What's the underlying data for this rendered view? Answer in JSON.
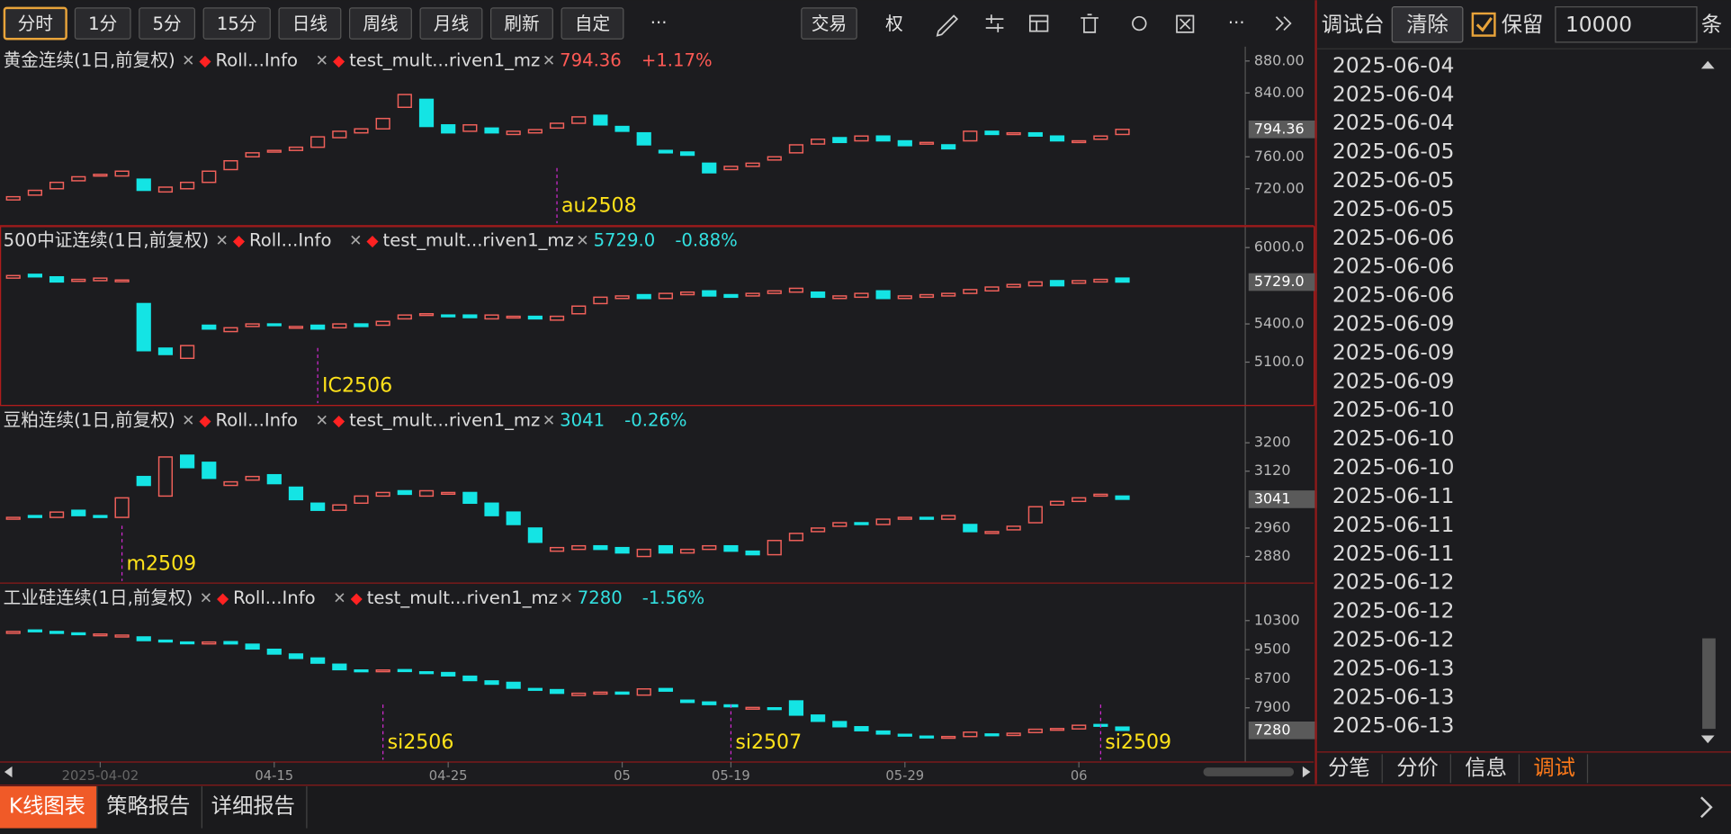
{
  "toolbar": {
    "periods": [
      "分时",
      "1分",
      "5分",
      "15分",
      "日线",
      "周线",
      "月线",
      "刷新",
      "自定"
    ],
    "active": 0,
    "more": "···",
    "actions": [
      "交易",
      "权"
    ]
  },
  "panels": [
    {
      "title": "黄金连续(1日,前复权)",
      "indicators": [
        "Roll...Info",
        "test_mult...riven1_mz"
      ],
      "last": {
        "value": 794.36,
        "label": "794.36"
      },
      "change": "+1.17%",
      "quote_color": "#ff5a55",
      "ylim": [
        674,
        898
      ],
      "yticks": [
        {
          "value": 880,
          "label": "880.00"
        },
        {
          "value": 840,
          "label": "840.00"
        },
        {
          "value": 760,
          "label": "760.00"
        },
        {
          "value": 720,
          "label": "720.00"
        }
      ],
      "open": [
        706,
        712,
        720,
        730,
        736,
        736,
        732,
        716,
        720,
        728,
        744,
        760,
        766,
        768,
        772,
        784,
        790,
        795,
        822,
        832,
        800,
        792,
        796,
        788,
        790,
        796,
        802,
        812,
        798,
        790,
        768,
        766,
        752,
        744,
        748,
        756,
        765,
        776,
        784,
        780,
        786,
        780,
        776,
        775,
        780,
        792,
        788,
        790,
        786,
        778,
        782,
        788
      ],
      "close": [
        710,
        718,
        728,
        735,
        738,
        742,
        718,
        722,
        728,
        742,
        755,
        765,
        768,
        772,
        785,
        792,
        795,
        808,
        838,
        798,
        790,
        800,
        790,
        792,
        794,
        802,
        810,
        800,
        792,
        775,
        765,
        762,
        740,
        748,
        752,
        760,
        775,
        782,
        778,
        786,
        780,
        774,
        778,
        770,
        792,
        788,
        790,
        786,
        780,
        780,
        786,
        794.36
      ],
      "markers": [
        {
          "label": "au2508",
          "at": 25
        }
      ]
    },
    {
      "title": "500中证连续(1日,前复权)",
      "indicators": [
        "Roll...Info",
        "test_mult...riven1_mz"
      ],
      "last": {
        "value": 5729,
        "label": "5729.0"
      },
      "change": "-0.88%",
      "quote_color": "#33e0e0",
      "ylim": [
        4760,
        6165
      ],
      "yticks": [
        {
          "value": 6000,
          "label": "6000.0"
        },
        {
          "value": 5400,
          "label": "5400.0"
        },
        {
          "value": 5100,
          "label": "5100.0"
        }
      ],
      "open": [
        5760,
        5790,
        5770,
        5735,
        5740,
        5745,
        5560,
        5210,
        5130,
        5390,
        5340,
        5380,
        5400,
        5370,
        5390,
        5370,
        5400,
        5390,
        5440,
        5470,
        5470,
        5470,
        5440,
        5450,
        5460,
        5430,
        5480,
        5560,
        5600,
        5630,
        5600,
        5630,
        5660,
        5630,
        5620,
        5640,
        5650,
        5650,
        5600,
        5610,
        5660,
        5600,
        5610,
        5620,
        5640,
        5660,
        5690,
        5700,
        5740,
        5720,
        5730,
        5760
      ],
      "close": [
        5780,
        5770,
        5730,
        5750,
        5760,
        5745,
        5190,
        5160,
        5230,
        5360,
        5370,
        5400,
        5390,
        5380,
        5360,
        5400,
        5380,
        5420,
        5470,
        5480,
        5460,
        5450,
        5470,
        5460,
        5440,
        5460,
        5540,
        5610,
        5620,
        5600,
        5640,
        5650,
        5620,
        5610,
        5640,
        5660,
        5680,
        5610,
        5620,
        5640,
        5600,
        5620,
        5630,
        5640,
        5670,
        5690,
        5710,
        5730,
        5700,
        5740,
        5750,
        5729
      ],
      "markers": [
        {
          "label": "IC2506",
          "at": 14
        }
      ]
    },
    {
      "title": "豆粕连续(1日,前复权)",
      "indicators": [
        "Roll...Info",
        "test_mult...riven1_mz"
      ],
      "last": {
        "value": 3041,
        "label": "3041"
      },
      "change": "-0.26%",
      "quote_color": "#33e0e0",
      "ylim": [
        2805,
        3302
      ],
      "yticks": [
        3200,
        3120,
        2960,
        2880
      ],
      "open": [
        2985,
        2995,
        2990,
        3010,
        2995,
        2990,
        3105,
        3050,
        3165,
        3145,
        3080,
        3095,
        3110,
        3075,
        3030,
        3010,
        3030,
        3050,
        3065,
        3050,
        3060,
        3060,
        3030,
        3005,
        2960,
        2895,
        2900,
        2910,
        2905,
        2880,
        2910,
        2890,
        2900,
        2910,
        2895,
        2885,
        2925,
        2950,
        2965,
        2975,
        2970,
        2985,
        2990,
        2985,
        2970,
        2945,
        2955,
        2975,
        3025,
        3035,
        3050,
        3050
      ],
      "close": [
        2990,
        2990,
        3005,
        2995,
        2990,
        3045,
        3080,
        3160,
        3130,
        3100,
        3090,
        3105,
        3085,
        3040,
        3010,
        3025,
        3050,
        3060,
        3055,
        3065,
        3060,
        3030,
        2995,
        2970,
        2920,
        2905,
        2910,
        2900,
        2890,
        2900,
        2890,
        2900,
        2910,
        2895,
        2885,
        2925,
        2945,
        2960,
        2975,
        2970,
        2985,
        2990,
        2985,
        2995,
        2950,
        2950,
        2965,
        3020,
        3035,
        3045,
        3055,
        3041
      ],
      "markers": [
        {
          "label": "m2509",
          "at": 5
        }
      ]
    },
    {
      "title": "工业硅连续(1日,前复权)",
      "indicators": [
        "Roll...Info",
        "test_mult...riven1_mz"
      ],
      "last": {
        "value": 7280,
        "label": "7280"
      },
      "change": "-1.56%",
      "quote_color": "#33e0e0",
      "ylim": [
        6410,
        11300
      ],
      "yticks": [
        10300,
        9500,
        8700,
        7900
      ],
      "open": [
        9950,
        10040,
        10000,
        9960,
        9920,
        9850,
        9850,
        9760,
        9710,
        9660,
        9720,
        9650,
        9510,
        9380,
        9270,
        9100,
        8940,
        8900,
        8950,
        8890,
        8870,
        8770,
        8640,
        8600,
        8430,
        8400,
        8240,
        8280,
        8330,
        8250,
        8430,
        8110,
        8060,
        7980,
        7900,
        7900,
        8090,
        7700,
        7520,
        7380,
        7260,
        7170,
        7120,
        7080,
        7110,
        7180,
        7140,
        7220,
        7300,
        7320,
        7440,
        7370
      ],
      "close": [
        10000,
        10020,
        9950,
        9940,
        9930,
        9900,
        9750,
        9720,
        9670,
        9710,
        9660,
        9520,
        9380,
        9260,
        9130,
        8950,
        8920,
        8940,
        8900,
        8880,
        8780,
        8650,
        8550,
        8440,
        8400,
        8300,
        8300,
        8330,
        8280,
        8420,
        8360,
        8050,
        7990,
        7930,
        7910,
        7880,
        7700,
        7530,
        7380,
        7270,
        7180,
        7130,
        7090,
        7110,
        7230,
        7140,
        7200,
        7310,
        7330,
        7420,
        7400,
        7280
      ],
      "markers": [
        {
          "label": "si2506",
          "at": 17
        },
        {
          "label": "si2507",
          "at": 33
        },
        {
          "label": "si2509",
          "at": 50
        }
      ]
    }
  ],
  "xaxis": {
    "labels": [
      {
        "label": "2025-04-02",
        "at": 4
      },
      {
        "label": "04-15",
        "at": 12
      },
      {
        "label": "04-25",
        "at": 20
      },
      {
        "label": "05",
        "at": 28
      },
      {
        "label": "05-19",
        "at": 33
      },
      {
        "label": "05-29",
        "at": 41
      },
      {
        "label": "06",
        "at": 49
      }
    ]
  },
  "console": {
    "title": "调试台",
    "clear": "清除",
    "keep": "保留",
    "count": "10000",
    "unit": "条",
    "lines": [
      "2025-06-04",
      "2025-06-04",
      "2025-06-04",
      "2025-06-05",
      "2025-06-05",
      "2025-06-05",
      "2025-06-06",
      "2025-06-06",
      "2025-06-06",
      "2025-06-09",
      "2025-06-09",
      "2025-06-09",
      "2025-06-10",
      "2025-06-10",
      "2025-06-10",
      "2025-06-11",
      "2025-06-11",
      "2025-06-11",
      "2025-06-12",
      "2025-06-12",
      "2025-06-12",
      "2025-06-13",
      "2025-06-13",
      "2025-06-13"
    ],
    "tabs": [
      "分笔",
      "分价",
      "信息",
      "调试"
    ],
    "active": 3
  },
  "bottom_tabs": {
    "items": [
      "K线图表",
      "策略报告",
      "详细报告"
    ],
    "active": 0
  }
}
